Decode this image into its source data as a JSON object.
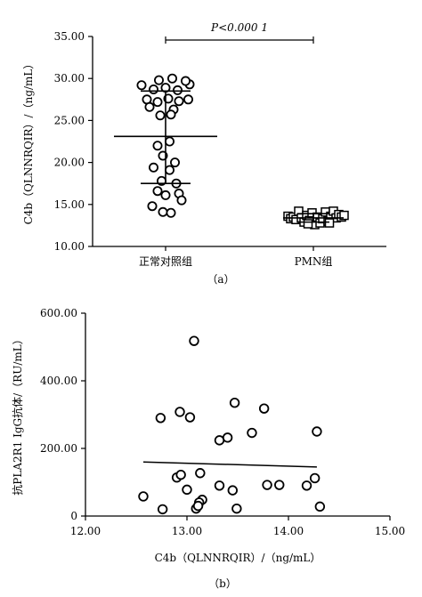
{
  "chart_data": [
    {
      "type": "scatter",
      "panel_label": "（a）",
      "ylabel": "C4b（QLNNRQIR）/（ng/mL）",
      "ylim": [
        10,
        35
      ],
      "y_ticks": [
        "10.00",
        "15.00",
        "20.00",
        "25.00",
        "30.00",
        "35.00"
      ],
      "categories": [
        "正常对照组",
        "PMN组"
      ],
      "annotation": "P<0.000 1",
      "grid": false,
      "series": [
        {
          "category": "正常对照组",
          "marker": "circle",
          "mean": 23.1,
          "sd_upper": 28.5,
          "sd_lower": 17.5,
          "points": [
            {
              "offset": -0.9,
              "y": 29.2
            },
            {
              "offset": -0.45,
              "y": 28.7
            },
            {
              "offset": 0.0,
              "y": 28.9
            },
            {
              "offset": 0.45,
              "y": 28.6
            },
            {
              "offset": 0.9,
              "y": 29.3
            },
            {
              "offset": -0.25,
              "y": 29.8
            },
            {
              "offset": 0.25,
              "y": 30.0
            },
            {
              "offset": 0.75,
              "y": 29.7
            },
            {
              "offset": -0.7,
              "y": 27.5
            },
            {
              "offset": -0.3,
              "y": 27.2
            },
            {
              "offset": 0.1,
              "y": 27.6
            },
            {
              "offset": 0.5,
              "y": 27.3
            },
            {
              "offset": 0.85,
              "y": 27.5
            },
            {
              "offset": -0.6,
              "y": 26.6
            },
            {
              "offset": 0.3,
              "y": 26.3
            },
            {
              "offset": -0.2,
              "y": 25.6
            },
            {
              "offset": 0.2,
              "y": 25.7
            },
            {
              "offset": 0.15,
              "y": 22.5
            },
            {
              "offset": -0.3,
              "y": 22.0
            },
            {
              "offset": -0.1,
              "y": 20.8
            },
            {
              "offset": 0.35,
              "y": 20.0
            },
            {
              "offset": -0.45,
              "y": 19.4
            },
            {
              "offset": 0.15,
              "y": 19.1
            },
            {
              "offset": -0.15,
              "y": 17.8
            },
            {
              "offset": 0.4,
              "y": 17.5
            },
            {
              "offset": -0.3,
              "y": 16.6
            },
            {
              "offset": 0.0,
              "y": 16.1
            },
            {
              "offset": 0.5,
              "y": 16.3
            },
            {
              "offset": 0.6,
              "y": 15.5
            },
            {
              "offset": -0.5,
              "y": 14.8
            },
            {
              "offset": -0.1,
              "y": 14.1
            },
            {
              "offset": 0.2,
              "y": 14.0
            }
          ]
        },
        {
          "category": "PMN组",
          "marker": "square",
          "mean": 13.4,
          "sd_upper": 13.9,
          "sd_lower": 12.9,
          "points": [
            {
              "offset": -0.95,
              "y": 13.6
            },
            {
              "offset": -0.85,
              "y": 13.3
            },
            {
              "offset": -0.75,
              "y": 13.5
            },
            {
              "offset": -0.65,
              "y": 13.2
            },
            {
              "offset": -0.55,
              "y": 14.2
            },
            {
              "offset": -0.45,
              "y": 13.4
            },
            {
              "offset": -0.35,
              "y": 12.9
            },
            {
              "offset": -0.25,
              "y": 13.7
            },
            {
              "offset": -0.15,
              "y": 13.1
            },
            {
              "offset": -0.05,
              "y": 14.0
            },
            {
              "offset": 0.05,
              "y": 12.6
            },
            {
              "offset": 0.15,
              "y": 13.5
            },
            {
              "offset": 0.25,
              "y": 12.8
            },
            {
              "offset": 0.35,
              "y": 13.3
            },
            {
              "offset": 0.45,
              "y": 14.1
            },
            {
              "offset": 0.55,
              "y": 13.0
            },
            {
              "offset": 0.65,
              "y": 13.6
            },
            {
              "offset": 0.75,
              "y": 14.2
            },
            {
              "offset": 0.85,
              "y": 13.4
            },
            {
              "offset": 0.95,
              "y": 13.8
            },
            {
              "offset": 1.05,
              "y": 13.5
            },
            {
              "offset": 1.15,
              "y": 13.7
            },
            {
              "offset": -0.2,
              "y": 12.7
            },
            {
              "offset": 0.6,
              "y": 12.8
            }
          ]
        }
      ]
    },
    {
      "type": "scatter",
      "panel_label": "（b）",
      "xlabel": "C4b（QLNNRQIR）/（ng/mL）",
      "ylabel": "抗PLA2R1 IgG抗体/（RU/mL）",
      "xlim": [
        12,
        15
      ],
      "ylim": [
        0,
        600
      ],
      "x_ticks": [
        "12.00",
        "13.00",
        "14.00",
        "15.00"
      ],
      "y_ticks": [
        "0",
        "200.00",
        "400.00",
        "600.00"
      ],
      "grid": false,
      "points": [
        {
          "x": 13.07,
          "y": 518
        },
        {
          "x": 12.74,
          "y": 290
        },
        {
          "x": 12.93,
          "y": 308
        },
        {
          "x": 13.03,
          "y": 292
        },
        {
          "x": 13.47,
          "y": 335
        },
        {
          "x": 13.76,
          "y": 318
        },
        {
          "x": 13.32,
          "y": 224
        },
        {
          "x": 13.4,
          "y": 232
        },
        {
          "x": 13.64,
          "y": 246
        },
        {
          "x": 14.28,
          "y": 250
        },
        {
          "x": 12.9,
          "y": 114
        },
        {
          "x": 12.94,
          "y": 122
        },
        {
          "x": 13.13,
          "y": 127
        },
        {
          "x": 13.32,
          "y": 90
        },
        {
          "x": 13.45,
          "y": 76
        },
        {
          "x": 13.79,
          "y": 92
        },
        {
          "x": 13.91,
          "y": 92
        },
        {
          "x": 14.18,
          "y": 90
        },
        {
          "x": 14.26,
          "y": 112
        },
        {
          "x": 12.57,
          "y": 58
        },
        {
          "x": 13.0,
          "y": 78
        },
        {
          "x": 13.15,
          "y": 48
        },
        {
          "x": 13.12,
          "y": 40
        },
        {
          "x": 12.76,
          "y": 20
        },
        {
          "x": 13.09,
          "y": 22
        },
        {
          "x": 13.11,
          "y": 30
        },
        {
          "x": 13.49,
          "y": 22
        },
        {
          "x": 14.31,
          "y": 28
        }
      ],
      "fit_line": {
        "x": [
          12.57,
          14.28
        ],
        "y": [
          160,
          145
        ]
      }
    }
  ]
}
